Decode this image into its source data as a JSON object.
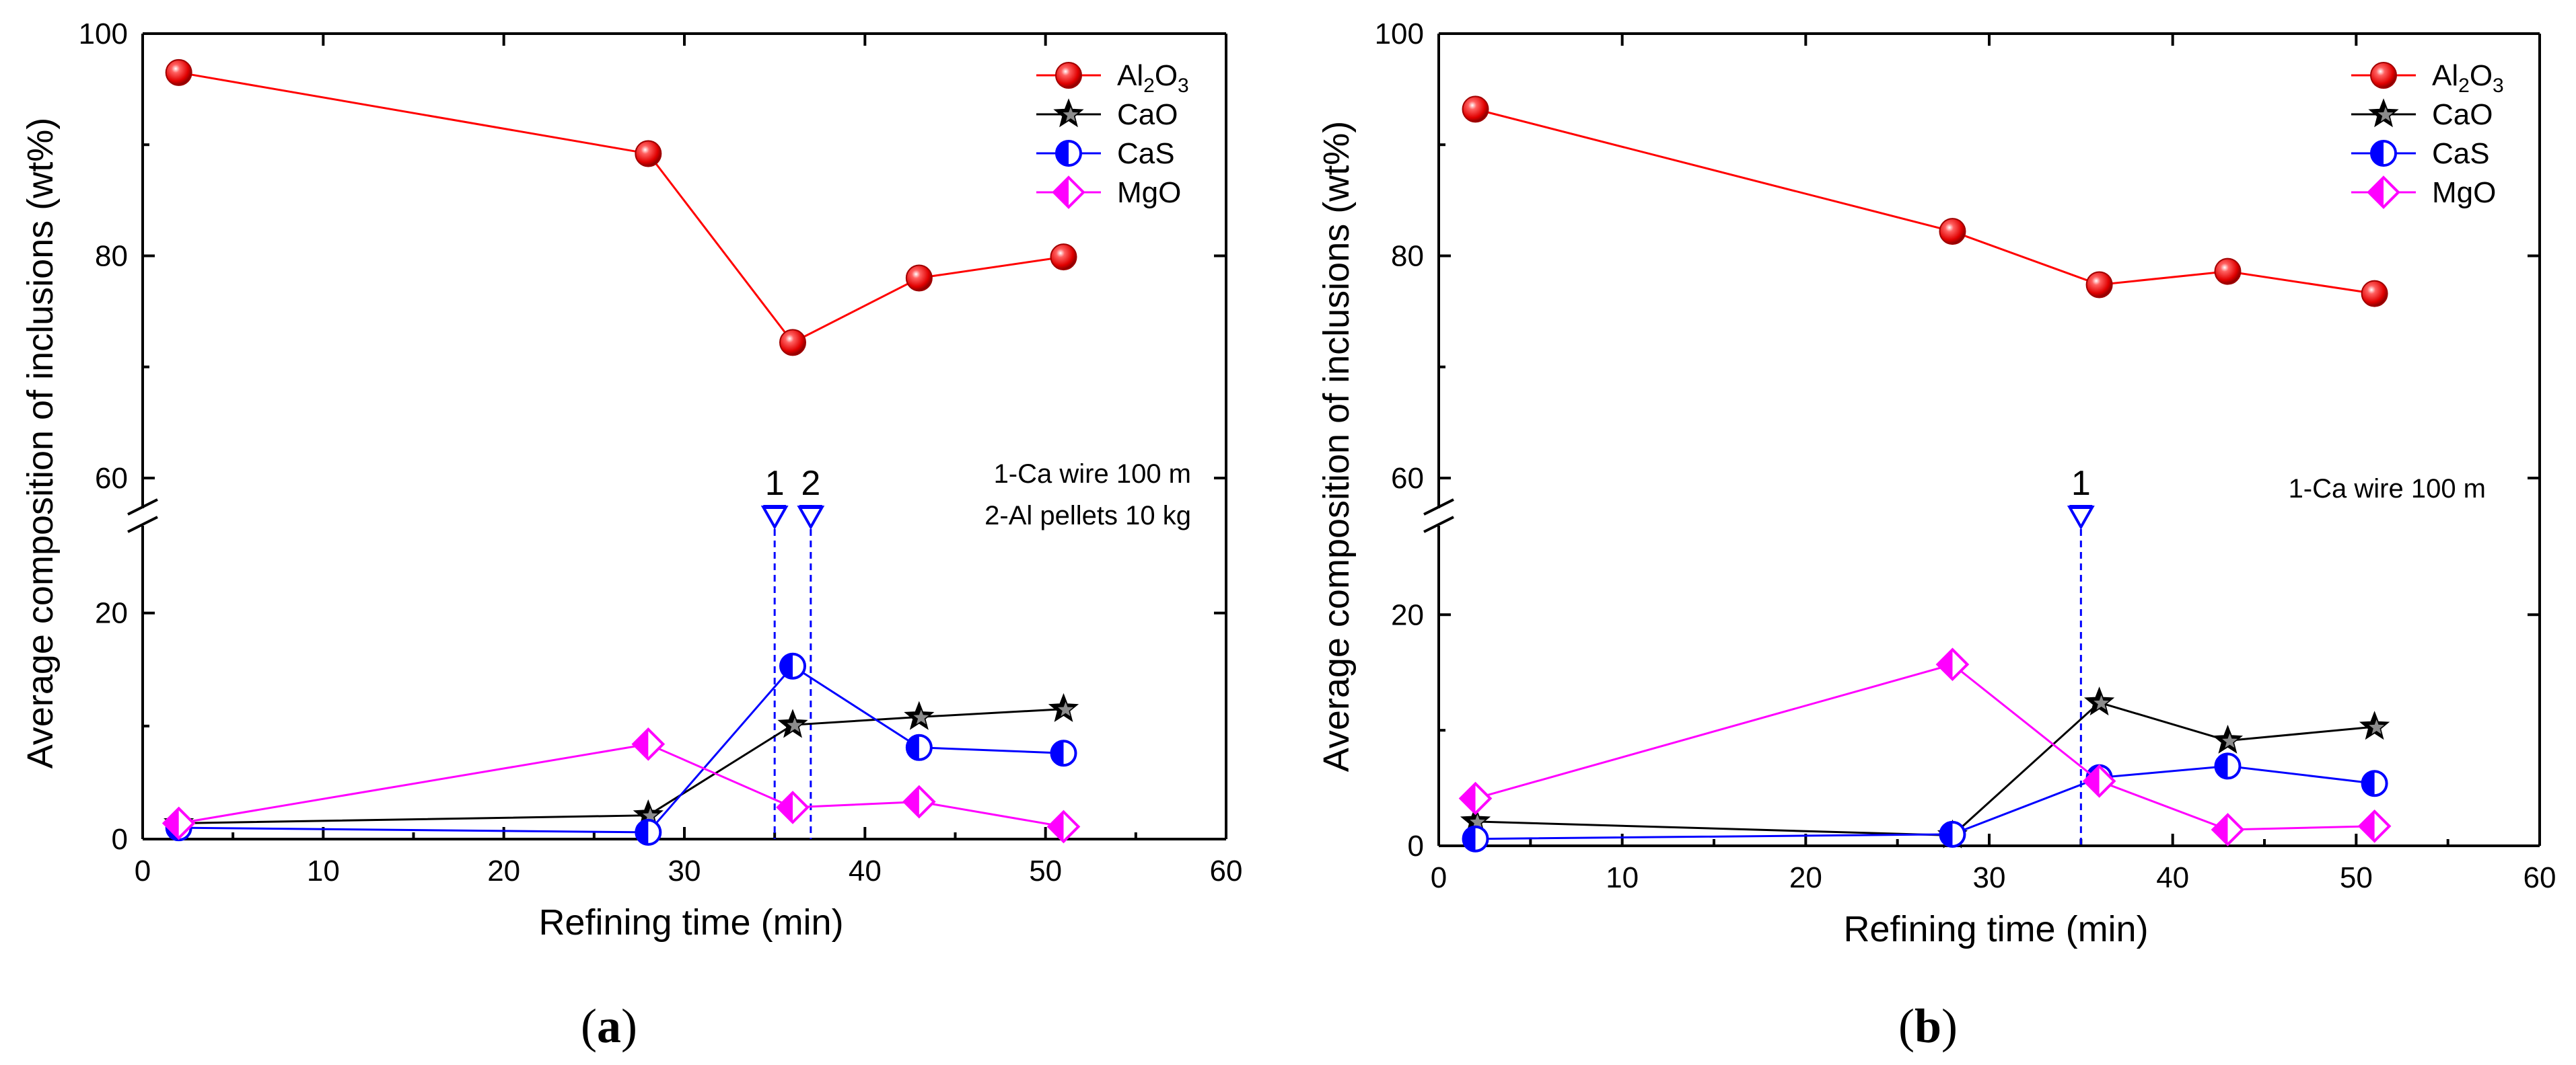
{
  "chart_data": [
    {
      "type": "line",
      "panel_label": "a",
      "xlabel": "Refining time (min)",
      "ylabel": "Average composition of inclusions (wt%)",
      "xlim": [
        0,
        60
      ],
      "x_ticks": [
        0,
        10,
        20,
        30,
        40,
        50,
        60
      ],
      "ylim_lower": [
        0,
        27
      ],
      "ylim_upper": [
        58,
        100
      ],
      "y_ticks_lower": [
        0,
        20
      ],
      "y_ticks_upper": [
        60,
        80,
        100
      ],
      "axis_break": true,
      "legend_position": "top-right",
      "series": [
        {
          "name": "Al2O3",
          "label_main": "Al",
          "label_sub1": "2",
          "label_mid": "O",
          "label_sub2": "3",
          "color": "#ff0000",
          "marker": "sphere",
          "x": [
            2,
            28,
            36,
            43,
            51
          ],
          "values": [
            96.5,
            89.2,
            72.2,
            78.0,
            79.9
          ]
        },
        {
          "name": "CaO",
          "color": "#000000",
          "marker": "star",
          "x": [
            2,
            28,
            36,
            43,
            51
          ],
          "values": [
            1.4,
            2.1,
            10.1,
            10.8,
            11.5
          ]
        },
        {
          "name": "CaS",
          "color": "#0000ff",
          "marker": "half-circle",
          "x": [
            2,
            28,
            36,
            43,
            51
          ],
          "values": [
            1.0,
            0.6,
            15.3,
            8.1,
            7.6
          ]
        },
        {
          "name": "MgO",
          "color": "#ff00ff",
          "marker": "half-diamond",
          "x": [
            2,
            28,
            36,
            43,
            51
          ],
          "values": [
            1.4,
            8.4,
            2.8,
            3.3,
            1.1
          ]
        }
      ],
      "markers": [
        {
          "label": "1",
          "x": 35
        },
        {
          "label": "2",
          "x": 37
        }
      ],
      "annotations": [
        "1-Ca wire 100 m",
        "2-Al pellets 10 kg"
      ]
    },
    {
      "type": "line",
      "panel_label": "b",
      "xlabel": "Refining time (min)",
      "ylabel": "Average composition of inclusions (wt%)",
      "xlim": [
        0,
        60
      ],
      "x_ticks": [
        0,
        10,
        20,
        30,
        40,
        50,
        60
      ],
      "ylim_lower": [
        0,
        27
      ],
      "ylim_upper": [
        58,
        100
      ],
      "y_ticks_lower": [
        0,
        20
      ],
      "y_ticks_upper": [
        60,
        80,
        100
      ],
      "axis_break": true,
      "legend_position": "top-right",
      "series": [
        {
          "name": "Al2O3",
          "label_main": "Al",
          "label_sub1": "2",
          "label_mid": "O",
          "label_sub2": "3",
          "color": "#ff0000",
          "marker": "sphere",
          "x": [
            2,
            28,
            36,
            43,
            51
          ],
          "values": [
            93.2,
            82.2,
            77.4,
            78.6,
            76.6
          ]
        },
        {
          "name": "CaO",
          "color": "#000000",
          "marker": "star",
          "x": [
            2,
            28,
            36,
            43,
            51
          ],
          "values": [
            2.1,
            0.9,
            12.4,
            9.1,
            10.3
          ]
        },
        {
          "name": "CaS",
          "color": "#0000ff",
          "marker": "half-circle",
          "x": [
            2,
            28,
            36,
            43,
            51
          ],
          "values": [
            0.6,
            1.0,
            5.9,
            6.9,
            5.4
          ]
        },
        {
          "name": "MgO",
          "color": "#ff00ff",
          "marker": "half-diamond",
          "x": [
            2,
            28,
            36,
            43,
            51
          ],
          "values": [
            4.1,
            15.7,
            5.6,
            1.4,
            1.7
          ]
        }
      ],
      "markers": [
        {
          "label": "1",
          "x": 35
        }
      ],
      "annotations": [
        "1-Ca wire 100 m"
      ]
    }
  ]
}
